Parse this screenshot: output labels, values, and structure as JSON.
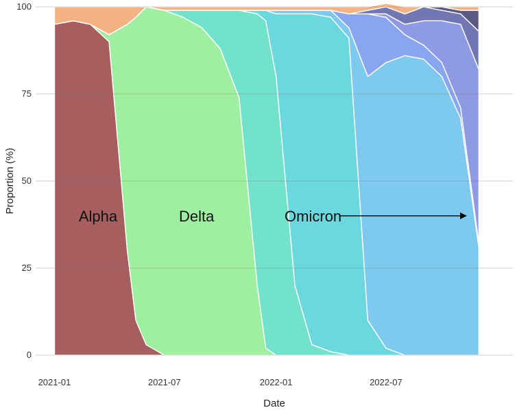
{
  "chart_data": {
    "type": "area",
    "stacked": true,
    "xlabel": "Date",
    "ylabel": "Proportion (%)",
    "ylim": [
      0,
      100
    ],
    "xlim": [
      "2021-01-01",
      "2022-12-01"
    ],
    "yticks": [
      0,
      25,
      50,
      75,
      100
    ],
    "xticks": [
      "2021-01",
      "2021-07",
      "2022-01",
      "2022-07"
    ],
    "grid": "horizontal",
    "legend": "none",
    "x": [
      "2021-01-01",
      "2021-02-01",
      "2021-03-01",
      "2021-04-01",
      "2021-05-01",
      "2021-05-15",
      "2021-06-01",
      "2021-07-01",
      "2021-08-01",
      "2021-09-01",
      "2021-10-01",
      "2021-11-01",
      "2021-12-01",
      "2021-12-15",
      "2022-01-01",
      "2022-02-01",
      "2022-03-01",
      "2022-04-01",
      "2022-05-01",
      "2022-06-01",
      "2022-07-01",
      "2022-08-01",
      "2022-09-01",
      "2022-10-01",
      "2022-11-01",
      "2022-12-01"
    ],
    "series": [
      {
        "color": "#a65e5e",
        "values": [
          95,
          96,
          95,
          90,
          30,
          10,
          3,
          0,
          0,
          0,
          0,
          0,
          0,
          0,
          0,
          0,
          0,
          0,
          0,
          0,
          0,
          0,
          0,
          0,
          0,
          0
        ]
      },
      {
        "color": "#9ef0a0",
        "values": [
          0,
          0,
          0,
          2,
          65,
          87,
          97,
          99,
          97,
          94,
          88,
          74,
          20,
          2,
          0,
          0,
          0,
          0,
          0,
          0,
          0,
          0,
          0,
          0,
          0,
          0
        ]
      },
      {
        "color": "#72e2cb",
        "values": [
          0,
          0,
          0,
          0,
          0,
          0,
          0,
          0,
          2,
          5,
          11,
          25,
          78,
          94,
          80,
          20,
          3,
          1,
          0,
          0,
          0,
          0,
          0,
          0,
          0,
          0
        ]
      },
      {
        "color": "#6ad8de",
        "values": [
          0,
          0,
          0,
          0,
          0,
          0,
          0,
          0,
          0,
          0,
          0,
          0,
          1,
          3,
          18,
          78,
          95,
          96,
          91,
          10,
          2,
          0,
          0,
          0,
          0,
          0
        ]
      },
      {
        "color": "#7ec9ee",
        "values": [
          0,
          0,
          0,
          0,
          0,
          0,
          0,
          0,
          0,
          0,
          0,
          0,
          0,
          0,
          1,
          1,
          1,
          2,
          3,
          70,
          82,
          86,
          85,
          80,
          68,
          31
        ]
      },
      {
        "color": "#8aa5f0",
        "values": [
          0,
          0,
          0,
          0,
          0,
          0,
          0,
          0,
          0,
          0,
          0,
          0,
          0,
          0,
          0,
          0,
          0,
          0,
          4,
          18,
          13,
          6,
          4,
          4,
          3,
          1
        ]
      },
      {
        "color": "#8e9ae3",
        "values": [
          0,
          0,
          0,
          0,
          0,
          0,
          0,
          0,
          0,
          0,
          0,
          0,
          0,
          0,
          0,
          0,
          0,
          0,
          0,
          0,
          1,
          3,
          7,
          12,
          24,
          50
        ]
      },
      {
        "color": "#7277b3",
        "values": [
          0,
          0,
          0,
          0,
          0,
          0,
          0,
          0,
          0,
          0,
          0,
          0,
          0,
          0,
          0,
          0,
          0,
          0,
          0,
          1,
          2,
          3,
          4,
          3,
          3,
          11
        ]
      },
      {
        "color": "#5c5884",
        "values": [
          0,
          0,
          0,
          0,
          0,
          0,
          0,
          0,
          0,
          0,
          0,
          0,
          0,
          0,
          0,
          0,
          0,
          0,
          0,
          0,
          0,
          0,
          0,
          1,
          1,
          6
        ]
      },
      {
        "color": "#f6b183",
        "values": [
          5,
          4,
          5,
          8,
          5,
          3,
          0,
          1,
          1,
          1,
          1,
          1,
          1,
          1,
          1,
          1,
          1,
          1,
          2,
          1,
          1,
          2,
          0,
          0,
          1,
          1
        ]
      }
    ],
    "annotations": [
      {
        "text": "Alpha",
        "x": "2021-02-10",
        "y": 40
      },
      {
        "text": "Delta",
        "x": "2021-07-25",
        "y": 40
      },
      {
        "text": "Omicron",
        "x": "2022-01-15",
        "y": 40
      },
      {
        "text": "",
        "arrow": true,
        "x_from": "2022-04-15",
        "x_to": "2022-11-10",
        "y": 40
      }
    ]
  }
}
